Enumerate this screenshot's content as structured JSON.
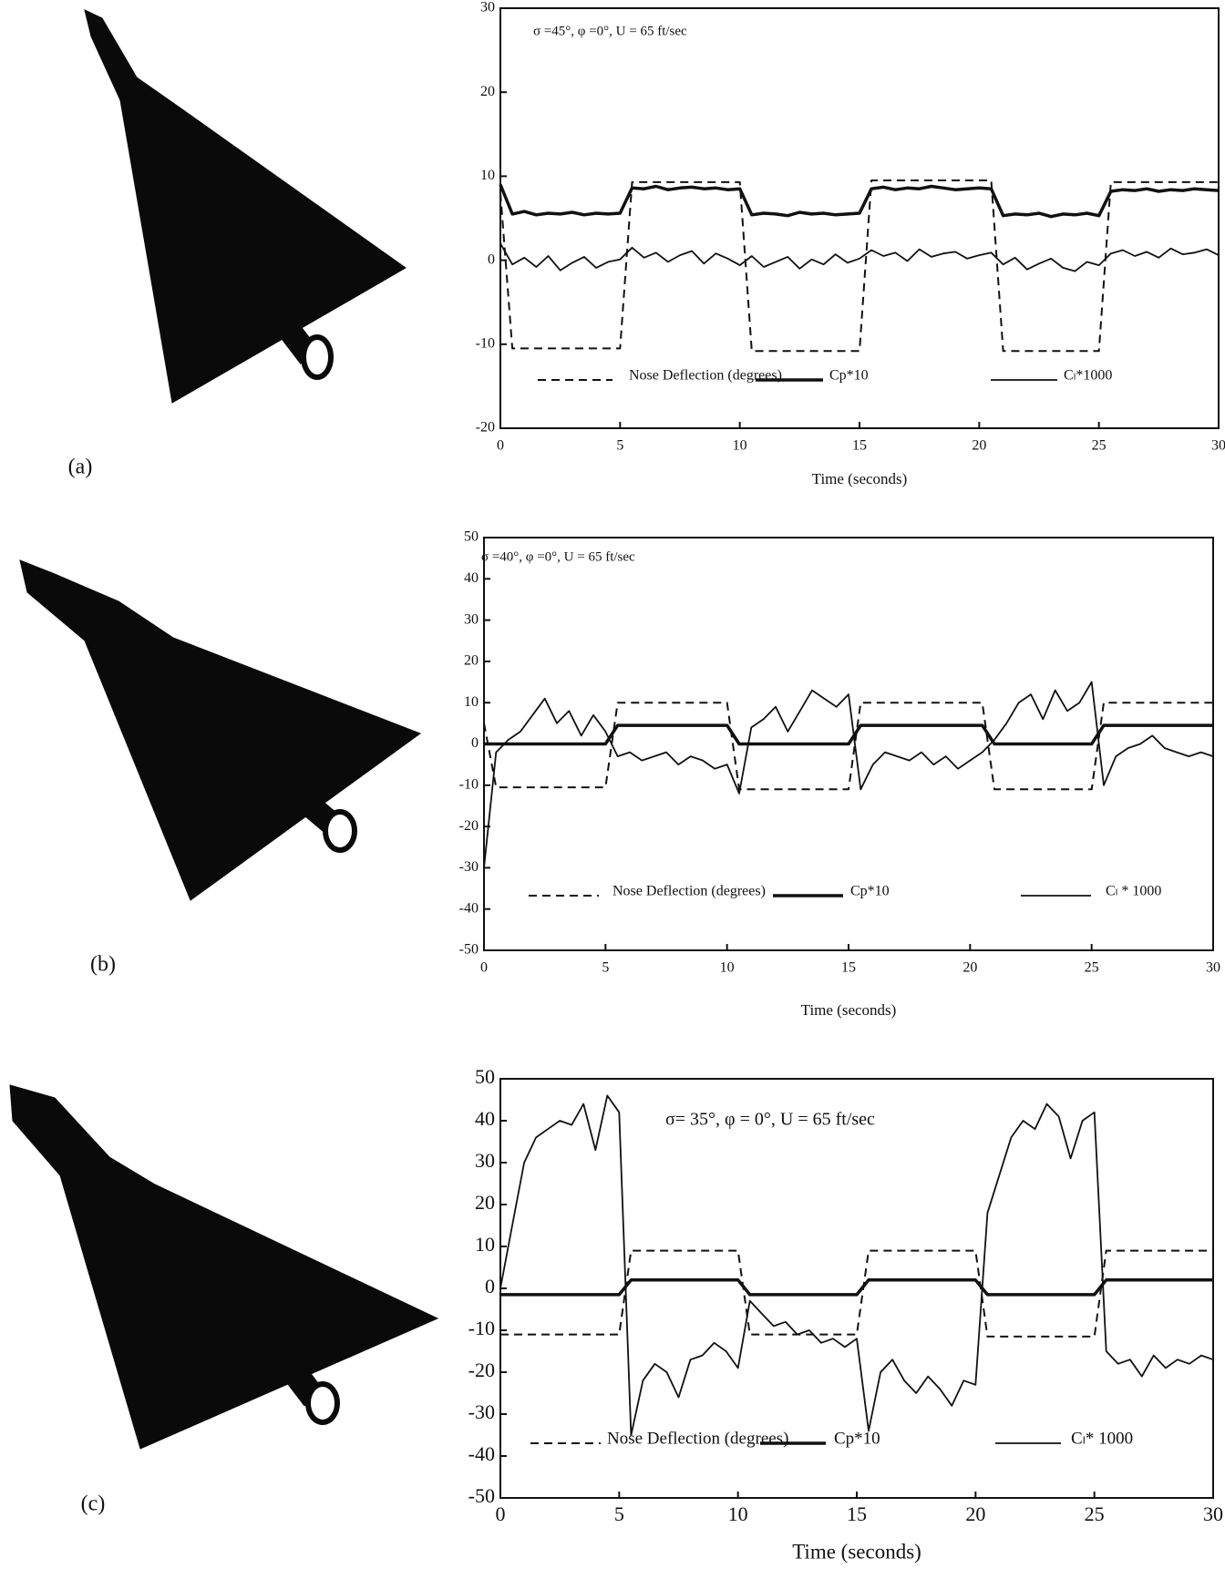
{
  "chart_data": [
    {
      "type": "line",
      "panel_label": "(a)",
      "annotation": "σ =45°,   φ =0°, U = 65 ft/sec",
      "x_label": "Time (seconds)",
      "x": [
        0,
        0.5,
        1,
        1.5,
        2,
        2.5,
        3,
        3.5,
        4,
        4.5,
        5,
        5.5,
        6,
        6.5,
        7,
        7.5,
        8,
        8.5,
        9,
        9.5,
        10,
        10.5,
        11,
        11.5,
        12,
        12.5,
        13,
        13.5,
        14,
        14.5,
        15,
        15.5,
        16,
        16.5,
        17,
        17.5,
        18,
        18.5,
        19,
        19.5,
        20,
        20.5,
        21,
        21.5,
        22,
        22.5,
        23,
        23.5,
        24,
        24.5,
        25,
        25.5,
        26,
        26.5,
        27,
        27.5,
        28,
        28.5,
        29,
        29.5,
        30
      ],
      "xlim": [
        0,
        30
      ],
      "xticks": [
        0,
        5,
        10,
        15,
        20,
        25,
        30
      ],
      "ylim": [
        -20,
        30
      ],
      "yticks": [
        30,
        20,
        10,
        0,
        -10,
        -20
      ],
      "grid": false,
      "series": [
        {
          "name": "Nose Deflection (degrees)",
          "color": "#111111",
          "dashed": true,
          "values": [
            8,
            -10.5,
            -10.5,
            -10.5,
            -10.5,
            -10.5,
            -10.5,
            -10.5,
            -10.5,
            -10.5,
            -10.5,
            9.3,
            9.3,
            9.3,
            9.3,
            9.3,
            9.3,
            9.3,
            9.3,
            9.3,
            9.3,
            -10.8,
            -10.8,
            -10.8,
            -10.8,
            -10.8,
            -10.8,
            -10.8,
            -10.8,
            -10.8,
            -10.8,
            9.5,
            9.5,
            9.5,
            9.5,
            9.5,
            9.5,
            9.5,
            9.5,
            9.5,
            9.5,
            9.5,
            -10.8,
            -10.8,
            -10.8,
            -10.8,
            -10.8,
            -10.8,
            -10.8,
            -10.8,
            -10.8,
            9.3,
            9.3,
            9.3,
            9.3,
            9.3,
            9.3,
            9.3,
            9.3,
            9.3,
            9.3
          ]
        },
        {
          "name": "Cp*10",
          "color": "#111111",
          "dashed": false,
          "values": [
            9,
            5.5,
            5.8,
            5.4,
            5.6,
            5.5,
            5.7,
            5.4,
            5.6,
            5.5,
            5.6,
            8.6,
            8.5,
            8.8,
            8.4,
            8.6,
            8.7,
            8.5,
            8.6,
            8.4,
            8.5,
            5.4,
            5.6,
            5.5,
            5.3,
            5.7,
            5.5,
            5.6,
            5.4,
            5.5,
            5.6,
            8.5,
            8.7,
            8.4,
            8.6,
            8.5,
            8.8,
            8.6,
            8.4,
            8.5,
            8.6,
            8.5,
            5.3,
            5.5,
            5.4,
            5.6,
            5.2,
            5.5,
            5.4,
            5.6,
            5.3,
            8.2,
            8.4,
            8.3,
            8.5,
            8.2,
            8.4,
            8.3,
            8.5,
            8.4,
            8.3
          ]
        },
        {
          "name": "Cₗ*1000",
          "color": "#111111",
          "dashed": false,
          "values": [
            2,
            -0.5,
            0.3,
            -0.8,
            0.5,
            -1.2,
            -0.3,
            0.4,
            -0.9,
            -0.2,
            0.1,
            1.5,
            0.3,
            0.9,
            -0.2,
            0.6,
            1.1,
            -0.4,
            0.8,
            0.2,
            -0.6,
            0.5,
            -0.8,
            -0.2,
            0.4,
            -1.0,
            0.1,
            -0.5,
            0.7,
            -0.3,
            0.2,
            1.2,
            0.5,
            0.9,
            -0.1,
            1.3,
            0.4,
            0.8,
            1.0,
            0.2,
            0.6,
            0.9,
            -0.5,
            0.3,
            -1.1,
            -0.4,
            0.2,
            -0.9,
            -1.3,
            -0.2,
            -0.6,
            0.8,
            1.2,
            0.5,
            1.0,
            0.3,
            1.4,
            0.7,
            0.9,
            1.3,
            0.6
          ]
        }
      ]
    },
    {
      "type": "line",
      "panel_label": "(b)",
      "annotation": "σ =40°,    φ =0°, U = 65 ft/sec",
      "x_label": "Time (seconds)",
      "x": [
        0,
        0.5,
        1,
        1.5,
        2,
        2.5,
        3,
        3.5,
        4,
        4.5,
        5,
        5.5,
        6,
        6.5,
        7,
        7.5,
        8,
        8.5,
        9,
        9.5,
        10,
        10.5,
        11,
        11.5,
        12,
        12.5,
        13,
        13.5,
        14,
        14.5,
        15,
        15.5,
        16,
        16.5,
        17,
        17.5,
        18,
        18.5,
        19,
        19.5,
        20,
        20.5,
        21,
        21.5,
        22,
        22.5,
        23,
        23.5,
        24,
        24.5,
        25,
        25.5,
        26,
        26.5,
        27,
        27.5,
        28,
        28.5,
        29,
        29.5,
        30
      ],
      "xlim": [
        0,
        30
      ],
      "xticks": [
        0,
        5,
        10,
        15,
        20,
        25,
        30
      ],
      "ylim": [
        -50,
        50
      ],
      "yticks": [
        50,
        40,
        30,
        20,
        10,
        0,
        -10,
        -20,
        -30,
        -40,
        -50
      ],
      "grid": false,
      "series": [
        {
          "name": "Nose Deflection (degrees)",
          "color": "#111111",
          "dashed": true,
          "values": [
            5,
            -10.5,
            -10.5,
            -10.5,
            -10.5,
            -10.5,
            -10.5,
            -10.5,
            -10.5,
            -10.5,
            -10.5,
            10,
            10,
            10,
            10,
            10,
            10,
            10,
            10,
            10,
            10,
            -11,
            -11,
            -11,
            -11,
            -11,
            -11,
            -11,
            -11,
            -11,
            -11,
            10,
            10,
            10,
            10,
            10,
            10,
            10,
            10,
            10,
            10,
            10,
            -11,
            -11,
            -11,
            -11,
            -11,
            -11,
            -11,
            -11,
            -11,
            10,
            10,
            10,
            10,
            10,
            10,
            10,
            10,
            10,
            10
          ]
        },
        {
          "name": "Cp*10",
          "color": "#111111",
          "dashed": false,
          "values": [
            0,
            0,
            0,
            0,
            0,
            0,
            0,
            0,
            0,
            0,
            0,
            4.5,
            4.5,
            4.5,
            4.5,
            4.5,
            4.5,
            4.5,
            4.5,
            4.5,
            4.5,
            0,
            0,
            0,
            0,
            0,
            0,
            0,
            0,
            0,
            0,
            4.5,
            4.5,
            4.5,
            4.5,
            4.5,
            4.5,
            4.5,
            4.5,
            4.5,
            4.5,
            4.5,
            0,
            0,
            0,
            0,
            0,
            0,
            0,
            0,
            0,
            4.5,
            4.5,
            4.5,
            4.5,
            4.5,
            4.5,
            4.5,
            4.5,
            4.5,
            4.5
          ]
        },
        {
          "name": "Cₗ * 1000",
          "color": "#111111",
          "dashed": false,
          "values": [
            -30,
            -2,
            1,
            3,
            7,
            11,
            5,
            8,
            2,
            7,
            3,
            -3,
            -2,
            -4,
            -3,
            -2,
            -5,
            -3,
            -4,
            -6,
            -5,
            -12,
            4,
            6,
            9,
            3,
            8,
            13,
            11,
            9,
            12,
            -11,
            -5,
            -2,
            -3,
            -4,
            -2,
            -5,
            -3,
            -6,
            -4,
            -2,
            1,
            5,
            10,
            12,
            6,
            13,
            8,
            10,
            15,
            -10,
            -3,
            -1,
            0,
            2,
            -1,
            -2,
            -3,
            -2,
            -3
          ]
        }
      ]
    },
    {
      "type": "line",
      "panel_label": "(c)",
      "annotation": "σ= 35°, φ  = 0°, U = 65 ft/sec",
      "x_label": "Time (seconds)",
      "x": [
        0,
        0.5,
        1,
        1.5,
        2,
        2.5,
        3,
        3.5,
        4,
        4.5,
        5,
        5.5,
        6,
        6.5,
        7,
        7.5,
        8,
        8.5,
        9,
        9.5,
        10,
        10.5,
        11,
        11.5,
        12,
        12.5,
        13,
        13.5,
        14,
        14.5,
        15,
        15.5,
        16,
        16.5,
        17,
        17.5,
        18,
        18.5,
        19,
        19.5,
        20,
        20.5,
        21,
        21.5,
        22,
        22.5,
        23,
        23.5,
        24,
        24.5,
        25,
        25.5,
        26,
        26.5,
        27,
        27.5,
        28,
        28.5,
        29,
        29.5,
        30
      ],
      "xlim": [
        0,
        30
      ],
      "xticks": [
        0,
        5,
        10,
        15,
        20,
        25,
        30
      ],
      "ylim": [
        -50,
        50
      ],
      "yticks": [
        50,
        40,
        30,
        20,
        10,
        0,
        -10,
        -20,
        -30,
        -40,
        -50
      ],
      "grid": false,
      "series": [
        {
          "name": "Nose Deflection (degrees)",
          "color": "#111111",
          "dashed": true,
          "values": [
            -11,
            -11,
            -11,
            -11,
            -11,
            -11,
            -11,
            -11,
            -11,
            -11,
            -11,
            9,
            9,
            9,
            9,
            9,
            9,
            9,
            9,
            9,
            9,
            -11,
            -11,
            -11,
            -11,
            -11,
            -11,
            -11,
            -11,
            -11,
            -11,
            9,
            9,
            9,
            9,
            9,
            9,
            9,
            9,
            9,
            9,
            -11.5,
            -11.5,
            -11.5,
            -11.5,
            -11.5,
            -11.5,
            -11.5,
            -11.5,
            -11.5,
            -11.5,
            9,
            9,
            9,
            9,
            9,
            9,
            9,
            9,
            9,
            9
          ]
        },
        {
          "name": "Cp*10",
          "color": "#111111",
          "dashed": false,
          "values": [
            -1.5,
            -1.5,
            -1.5,
            -1.5,
            -1.5,
            -1.5,
            -1.5,
            -1.5,
            -1.5,
            -1.5,
            -1.5,
            2,
            2,
            2,
            2,
            2,
            2,
            2,
            2,
            2,
            2,
            -1.5,
            -1.5,
            -1.5,
            -1.5,
            -1.5,
            -1.5,
            -1.5,
            -1.5,
            -1.5,
            -1.5,
            2,
            2,
            2,
            2,
            2,
            2,
            2,
            2,
            2,
            2,
            -1.5,
            -1.5,
            -1.5,
            -1.5,
            -1.5,
            -1.5,
            -1.5,
            -1.5,
            -1.5,
            -1.5,
            2,
            2,
            2,
            2,
            2,
            2,
            2,
            2,
            2,
            2
          ]
        },
        {
          "name": "Cₗ* 1000",
          "color": "#111111",
          "dashed": false,
          "values": [
            0,
            15,
            30,
            36,
            38,
            40,
            39,
            44,
            33,
            46,
            42,
            -35,
            -22,
            -18,
            -20,
            -26,
            -17,
            -16,
            -13,
            -15,
            -19,
            -3,
            -6,
            -9,
            -8,
            -11,
            -10,
            -13,
            -12,
            -14,
            -12,
            -34,
            -20,
            -17,
            -22,
            -25,
            -21,
            -24,
            -28,
            -22,
            -23,
            18,
            27,
            36,
            40,
            38,
            44,
            41,
            31,
            40,
            42,
            -15,
            -18,
            -17,
            -21,
            -16,
            -19,
            -17,
            -18,
            -16,
            -17
          ]
        }
      ]
    }
  ]
}
